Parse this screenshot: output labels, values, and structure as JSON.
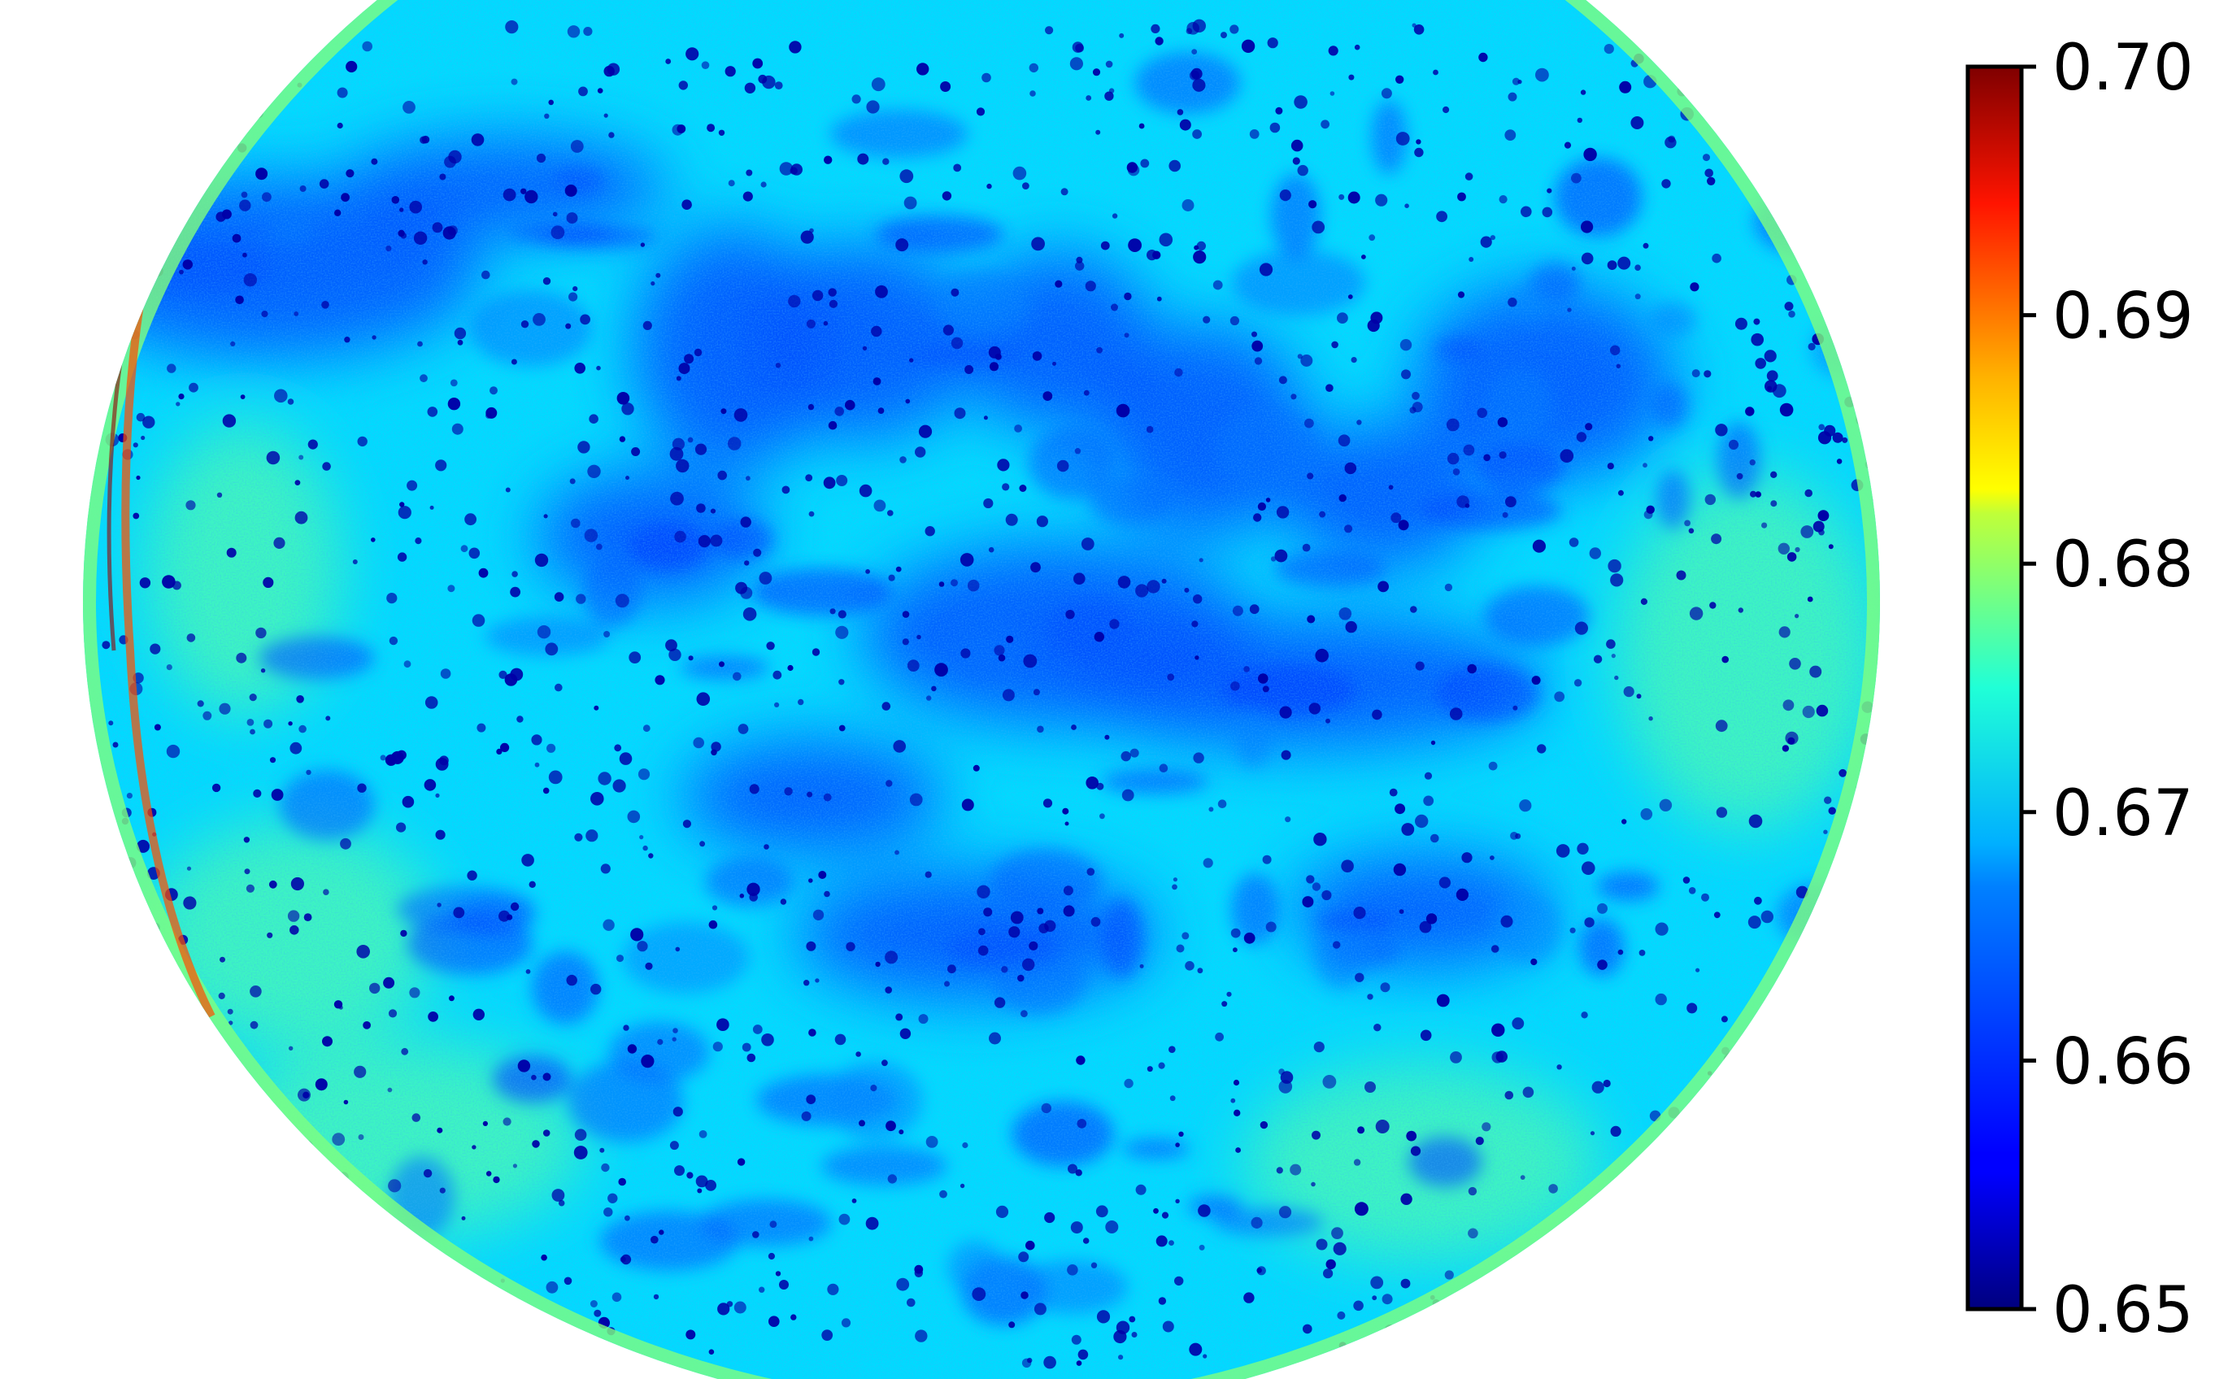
{
  "chart_data": {
    "type": "heatmap",
    "title": "",
    "xlabel": "",
    "ylabel": "",
    "colormap": "jet",
    "colorbar": {
      "min": 0.65,
      "max": 0.7,
      "ticks": [
        0.65,
        0.66,
        0.67,
        0.68,
        0.69,
        0.7
      ],
      "tick_labels": [
        "0.65",
        "0.66",
        "0.67",
        "0.68",
        "0.69",
        "0.70"
      ],
      "placement": "right"
    },
    "field": {
      "shape": "circular sample, clipped by the figure's top and bottom edges",
      "background_value": 0.667,
      "darker_regions_value": 0.66,
      "speckle_value": 0.652,
      "rim_values": [
        0.675,
        0.69,
        0.699
      ],
      "right_edge_band_value": 0.658
    }
  }
}
